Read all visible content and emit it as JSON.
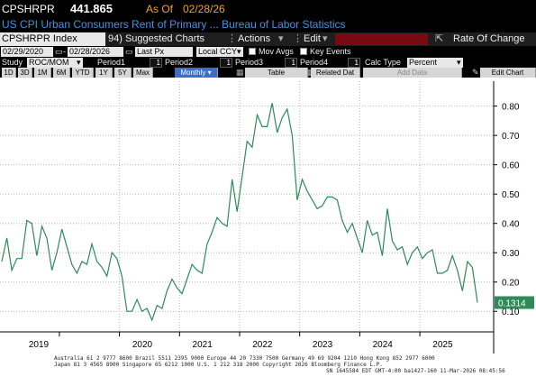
{
  "header": {
    "ticker": "CPSHRPR",
    "price": "441.865",
    "as_of_label": "As Of",
    "as_of_date": "02/28/26",
    "title": "US CPI Urban Consumers Rent of Primary ... Bureau of Labor Statistics"
  },
  "toolbar": {
    "security": "CPSHRPR Index",
    "suggested": "94) Suggested Charts",
    "actions": "Actions",
    "edit": "Edit",
    "rate_of_change": "Rate Of Change"
  },
  "controls": {
    "start_date": "02/29/2020",
    "end_date": "02/28/2026",
    "price_field": "Last Px",
    "currency": "Local CCY",
    "mov_avgs": "Mov Avgs",
    "key_events": "Key Events",
    "study_label": "Study",
    "study": "ROC/MOM",
    "period1_label": "Period1",
    "period1": "1",
    "period2_label": "Period2",
    "period2": "1",
    "period3_label": "Period3",
    "period3": "1",
    "period4_label": "Period4",
    "period4": "1",
    "calc_type_label": "Calc Type",
    "calc_type": "Percent"
  },
  "range_buttons": [
    "1D",
    "3D",
    "1M",
    "6M",
    "YTD",
    "1Y",
    "5Y",
    "Max"
  ],
  "frequency": "Monthly",
  "tabs": {
    "table": "Table",
    "related": "Related Dat",
    "add_data": "Add Data",
    "edit_chart": "Edit Chart"
  },
  "colors": {
    "line": "#2e8b57",
    "last_label": "#2e8b57",
    "accent": "#4a90e0",
    "orange": "#f0a030"
  },
  "chart_data": {
    "type": "line",
    "x_labels": [
      "2019",
      "2020",
      "2021",
      "2022",
      "2023",
      "2024",
      "2025"
    ],
    "y_ticks": [
      "0.80",
      "0.70",
      "0.60",
      "0.50",
      "0.40",
      "0.30",
      "0.20",
      "0.10"
    ],
    "ylim": [
      0.03,
      0.885
    ],
    "last_value": "0.1314",
    "series": [
      {
        "values": [
          0.27,
          0.35,
          0.24,
          0.28,
          0.28,
          0.41,
          0.4,
          0.29,
          0.39,
          0.35,
          0.24,
          0.3,
          0.38,
          0.32,
          0.26,
          0.23,
          0.27,
          0.26,
          0.33,
          0.27,
          0.25,
          0.22,
          0.3,
          0.28,
          0.22,
          0.1,
          0.1,
          0.14,
          0.1,
          0.11,
          0.07,
          0.12,
          0.11,
          0.17,
          0.21,
          0.18,
          0.16,
          0.21,
          0.26,
          0.24,
          0.23,
          0.33,
          0.37,
          0.42,
          0.4,
          0.39,
          0.55,
          0.44,
          0.56,
          0.68,
          0.66,
          0.77,
          0.73,
          0.73,
          0.81,
          0.71,
          0.76,
          0.79,
          0.7,
          0.48,
          0.55,
          0.51,
          0.48,
          0.45,
          0.46,
          0.49,
          0.49,
          0.48,
          0.41,
          0.37,
          0.4,
          0.35,
          0.3,
          0.41,
          0.36,
          0.37,
          0.29,
          0.45,
          0.34,
          0.31,
          0.32,
          0.26,
          0.3,
          0.32,
          0.28,
          0.3,
          0.31,
          0.23,
          0.23,
          0.24,
          0.29,
          0.24,
          0.17,
          0.27,
          0.25,
          0.13
        ]
      }
    ]
  },
  "footer": {
    "line1": "Australia 61 2 9777 8600 Brazil 5511 2395 9000 Europe 44 20 7330 7500 Germany 49 69 9204 1210 Hong Kong 852 2977 6000",
    "line2": "Japan 81 3 4565 8900          Singapore 65 6212 1000          U.S. 1 212 318 2000          Copyright 2026 Bloomberg Finance L.P.",
    "line3": "SN 1645584 EDT  GMT-4:00 ba1427-160 11-Mar-2026 08:45:56"
  }
}
